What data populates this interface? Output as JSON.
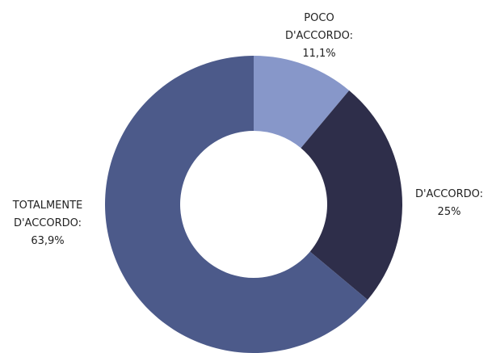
{
  "chart_data": {
    "type": "pie",
    "donut": true,
    "legend": "none",
    "slices": [
      {
        "label_lines": [
          "POCO",
          "D'ACCORDO:",
          "11,1%"
        ],
        "value": 11.1,
        "color": "#8797c9"
      },
      {
        "label_lines": [
          "D'ACCORDO:",
          "25%"
        ],
        "value": 25,
        "color": "#2e2e4a"
      },
      {
        "label_lines": [
          "TOTALMENTE",
          "D'ACCORDO:",
          "63,9%"
        ],
        "value": 63.9,
        "color": "#4c5a8a"
      }
    ]
  }
}
